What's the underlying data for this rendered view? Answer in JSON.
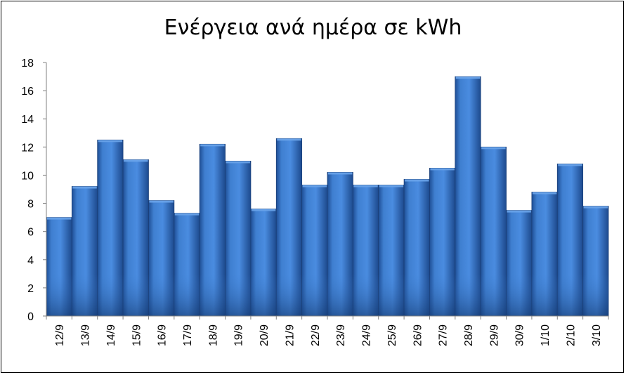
{
  "chart_data": {
    "type": "bar",
    "title": "Ενέργεια ανά ημέρα σε kWh",
    "xlabel": "",
    "ylabel": "",
    "categories": [
      "12/9",
      "13/9",
      "14/9",
      "15/9",
      "16/9",
      "17/9",
      "18/9",
      "19/9",
      "20/9",
      "21/9",
      "22/9",
      "23/9",
      "24/9",
      "25/9",
      "26/9",
      "27/9",
      "28/9",
      "29/9",
      "30/9",
      "1/10",
      "2/10",
      "3/10"
    ],
    "values": [
      7.0,
      9.2,
      12.5,
      11.1,
      8.2,
      7.3,
      12.2,
      11.0,
      7.6,
      12.6,
      9.3,
      10.2,
      9.3,
      9.3,
      9.7,
      10.5,
      17.0,
      12.0,
      7.5,
      8.8,
      10.8,
      7.8
    ],
    "ylim": [
      0,
      18
    ],
    "yticks": [
      "0",
      "2",
      "4",
      "6",
      "8",
      "10",
      "12",
      "14",
      "16",
      "18"
    ],
    "grid": false,
    "legend": "none",
    "bar_color": "#3a78c8"
  }
}
